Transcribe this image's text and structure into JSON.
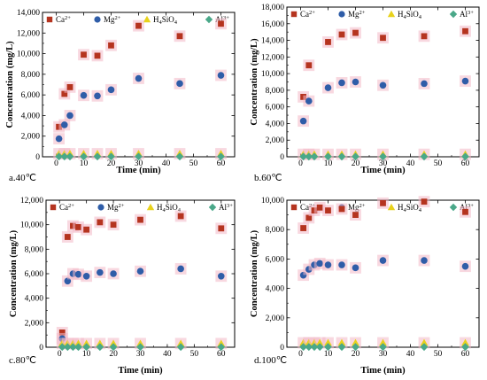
{
  "colors": {
    "Ca": "#b5341f",
    "Mg": "#2f5da8",
    "H4SiO4": "#e8d21c",
    "Al": "#4aa889",
    "halo": "#f2b8c6"
  },
  "legend": [
    {
      "key": "Ca",
      "base": "Ca",
      "sup": "2+",
      "sub": "",
      "tail": "",
      "marker": "square"
    },
    {
      "key": "Mg",
      "base": "Mg",
      "sup": "2+",
      "sub": "",
      "tail": "",
      "marker": "circle"
    },
    {
      "key": "H4SiO4",
      "base": "H",
      "sup": "",
      "sub": "4",
      "tail": "SiO",
      "sub2": "4",
      "marker": "triangle"
    },
    {
      "key": "Al",
      "base": "Al",
      "sup": "3+",
      "sub": "",
      "tail": "",
      "marker": "diamond"
    }
  ],
  "chart_data": [
    {
      "type": "scatter",
      "panel_label": "a.40℃",
      "xlabel": "Time (min)",
      "ylabel": "Concentration (mg/L)",
      "xlim": [
        -5,
        65
      ],
      "ylim": [
        0,
        14000
      ],
      "xticks": [
        0,
        10,
        20,
        30,
        40,
        50,
        60
      ],
      "yticks": [
        0,
        2000,
        4000,
        6000,
        8000,
        10000,
        12000,
        14000
      ],
      "x": [
        1,
        3,
        5,
        10,
        15,
        20,
        30,
        45,
        60
      ],
      "series": [
        {
          "name": "Ca2+",
          "key": "Ca",
          "values": [
            2900,
            6100,
            6750,
            9900,
            9800,
            10800,
            12700,
            11700,
            12900
          ]
        },
        {
          "name": "Mg2+",
          "key": "Mg",
          "values": [
            1750,
            3100,
            4000,
            5950,
            5900,
            6500,
            7600,
            7100,
            7900
          ]
        },
        {
          "name": "H4SiO4",
          "key": "H4SiO4",
          "values": [
            300,
            300,
            300,
            300,
            300,
            300,
            300,
            300,
            300
          ]
        },
        {
          "name": "Al3+",
          "key": "Al",
          "values": [
            20,
            20,
            20,
            20,
            20,
            20,
            20,
            20,
            20
          ]
        }
      ]
    },
    {
      "type": "scatter",
      "panel_label": "b.60℃",
      "xlabel": "Time (min)",
      "ylabel": "Concentration (mg/L)",
      "xlim": [
        -5,
        65
      ],
      "ylim": [
        0,
        18000
      ],
      "xticks": [
        0,
        10,
        20,
        30,
        40,
        50,
        60
      ],
      "yticks": [
        0,
        2000,
        4000,
        6000,
        8000,
        10000,
        12000,
        14000,
        16000,
        18000
      ],
      "x": [
        1,
        3,
        5,
        10,
        15,
        20,
        30,
        45,
        60
      ],
      "series": [
        {
          "name": "Ca2+",
          "key": "Ca",
          "values": [
            7200,
            11000,
            null,
            13800,
            14700,
            14900,
            14300,
            14500,
            15100
          ]
        },
        {
          "name": "Mg2+",
          "key": "Mg",
          "values": [
            4300,
            6700,
            null,
            8300,
            8900,
            9000,
            8600,
            8800,
            9100
          ]
        },
        {
          "name": "H4SiO4",
          "key": "H4SiO4",
          "values": [
            300,
            300,
            300,
            300,
            300,
            300,
            300,
            300,
            300
          ]
        },
        {
          "name": "Al3+",
          "key": "Al",
          "values": [
            20,
            20,
            20,
            20,
            20,
            20,
            20,
            20,
            20
          ]
        }
      ]
    },
    {
      "type": "scatter",
      "panel_label": "c.80℃",
      "xlabel": "Time (min)",
      "ylabel": "Concentration (mg/L)",
      "xlim": [
        -5,
        65
      ],
      "ylim": [
        0,
        12000
      ],
      "xticks": [
        0,
        10,
        20,
        30,
        40,
        50,
        60
      ],
      "yticks": [
        0,
        2000,
        4000,
        6000,
        8000,
        10000,
        12000
      ],
      "x": [
        1,
        3,
        5,
        7,
        10,
        15,
        20,
        30,
        45,
        60
      ],
      "series": [
        {
          "name": "Ca2+",
          "key": "Ca",
          "values": [
            1200,
            9000,
            9900,
            9800,
            9600,
            10200,
            10000,
            10400,
            10700,
            9700
          ]
        },
        {
          "name": "Mg2+",
          "key": "Mg",
          "values": [
            700,
            5400,
            6000,
            5950,
            5800,
            6100,
            6000,
            6200,
            6400,
            5800
          ]
        },
        {
          "name": "H4SiO4",
          "key": "H4SiO4",
          "values": [
            300,
            300,
            300,
            300,
            300,
            300,
            300,
            300,
            300,
            300
          ]
        },
        {
          "name": "Al3+",
          "key": "Al",
          "values": [
            20,
            20,
            20,
            20,
            20,
            20,
            20,
            20,
            20,
            20
          ]
        }
      ]
    },
    {
      "type": "scatter",
      "panel_label": "d.100℃",
      "xlabel": "Time (min)",
      "ylabel": "Concentration (mg/L)",
      "xlim": [
        -5,
        65
      ],
      "ylim": [
        0,
        10000
      ],
      "xticks": [
        0,
        10,
        20,
        30,
        40,
        50,
        60
      ],
      "yticks": [
        0,
        2000,
        4000,
        6000,
        8000,
        10000
      ],
      "x": [
        1,
        3,
        5,
        7,
        10,
        15,
        20,
        30,
        45,
        60
      ],
      "series": [
        {
          "name": "Ca2+",
          "key": "Ca",
          "values": [
            8100,
            8800,
            9300,
            9500,
            9300,
            9400,
            9000,
            9800,
            9900,
            9200
          ]
        },
        {
          "name": "Mg2+",
          "key": "Mg",
          "values": [
            4900,
            5300,
            5600,
            5700,
            5600,
            5600,
            5400,
            5900,
            5900,
            5500
          ]
        },
        {
          "name": "H4SiO4",
          "key": "H4SiO4",
          "values": [
            300,
            300,
            300,
            300,
            300,
            300,
            300,
            300,
            300,
            300
          ]
        },
        {
          "name": "Al3+",
          "key": "Al",
          "values": [
            20,
            20,
            20,
            20,
            20,
            20,
            20,
            20,
            20,
            20
          ]
        }
      ]
    }
  ]
}
